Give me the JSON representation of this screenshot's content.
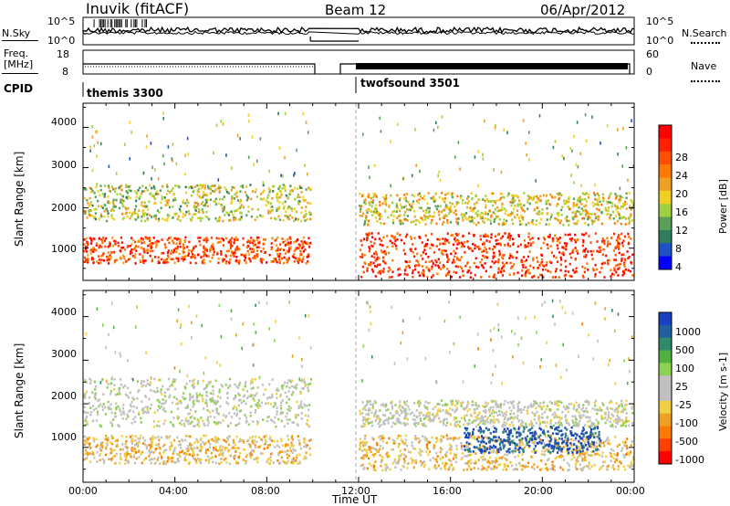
{
  "header": {
    "station": "Inuvik (fitACF)",
    "beam": "Beam 12",
    "date": "06/Apr/2012"
  },
  "top_panel": {
    "left_label": "N.Sky",
    "right_label": "N.Search",
    "left_ticks": [
      "10^5",
      "10^0"
    ],
    "right_ticks": [
      "10^5",
      "10^0"
    ]
  },
  "freq_panel": {
    "left_label_1": "Freq.",
    "left_label_2": "[MHz]",
    "right_label": "Nave",
    "left_ticks": [
      "18",
      "8"
    ],
    "right_ticks": [
      "60",
      "0"
    ]
  },
  "cpid": {
    "label": "CPID",
    "programs": [
      "themis 3300",
      "twofsound 3501"
    ]
  },
  "x_axis": {
    "label": "Time UT",
    "ticks": [
      "00:00",
      "04:00",
      "08:00",
      "12:00",
      "16:00",
      "20:00",
      "00:00"
    ]
  },
  "power_panel": {
    "ylabel": "Slant Range [km]",
    "yticks": [
      "4000",
      "3000",
      "2000",
      "1000"
    ],
    "colorbar_label": "Power [dB]",
    "colorbar_ticks": [
      "28",
      "24",
      "20",
      "16",
      "12",
      "8",
      "4"
    ],
    "colors": [
      "#0000ff",
      "#1e50c8",
      "#2f7f5f",
      "#5aa05a",
      "#a0d040",
      "#f0d020",
      "#f0a020",
      "#ff7a00",
      "#ff5000",
      "#ff2000",
      "#ff0000"
    ]
  },
  "velocity_panel": {
    "ylabel": "Slant Range [km]",
    "yticks": [
      "4000",
      "3000",
      "2000",
      "1000"
    ],
    "colorbar_label": "Velocity [m s-1]",
    "colorbar_ticks": [
      "1000",
      "500",
      "100",
      "25",
      "-25",
      "-100",
      "-500",
      "-1000"
    ],
    "colors": [
      "#1a3fc0",
      "#2060a0",
      "#2e8a6a",
      "#50b040",
      "#8ed050",
      "#c0c0c0",
      "#c0c0c0",
      "#f0d040",
      "#f0a020",
      "#ff7a00",
      "#ff4000",
      "#ff0000"
    ]
  },
  "chart_data": [
    {
      "type": "heatmap",
      "title": "Power",
      "xlabel": "Time UT",
      "ylabel": "Slant Range [km]",
      "xlim": [
        0,
        24
      ],
      "ylim": [
        200,
        4600
      ],
      "colorbar": {
        "label": "Power [dB]",
        "range": [
          0,
          32
        ]
      },
      "data_gap_hours": [
        9.9,
        12.0
      ],
      "bands": [
        {
          "t_start": 0.0,
          "t_end": 9.9,
          "range_km": [
            650,
            1300
          ],
          "power_db": 26
        },
        {
          "t_start": 0.0,
          "t_end": 9.9,
          "range_km": [
            1700,
            2600
          ],
          "power_db": 14
        },
        {
          "t_start": 12.0,
          "t_end": 24.0,
          "range_km": [
            300,
            1400
          ],
          "power_db": 28
        },
        {
          "t_start": 12.0,
          "t_end": 24.0,
          "range_km": [
            1600,
            2400
          ],
          "power_db": 16
        }
      ]
    },
    {
      "type": "heatmap",
      "title": "Velocity",
      "xlabel": "Time UT",
      "ylabel": "Slant Range [km]",
      "xlim": [
        0,
        24
      ],
      "ylim": [
        200,
        4600
      ],
      "colorbar": {
        "label": "Velocity [m s-1]",
        "range": [
          -1000,
          1000
        ]
      },
      "data_gap_hours": [
        9.9,
        12.0
      ],
      "bands": [
        {
          "t_start": 0.0,
          "t_end": 9.9,
          "range_km": [
            650,
            1300
          ],
          "velocity": -300
        },
        {
          "t_start": 0.0,
          "t_end": 9.9,
          "range_km": [
            1500,
            2600
          ],
          "velocity": 60
        },
        {
          "t_start": 12.0,
          "t_end": 24.0,
          "range_km": [
            500,
            1300
          ],
          "velocity": -300
        },
        {
          "t_start": 16.5,
          "t_end": 22.5,
          "range_km": [
            900,
            1500
          ],
          "velocity": 900
        },
        {
          "t_start": 12.0,
          "t_end": 24.0,
          "range_km": [
            1500,
            2100
          ],
          "velocity": 0
        }
      ]
    }
  ]
}
